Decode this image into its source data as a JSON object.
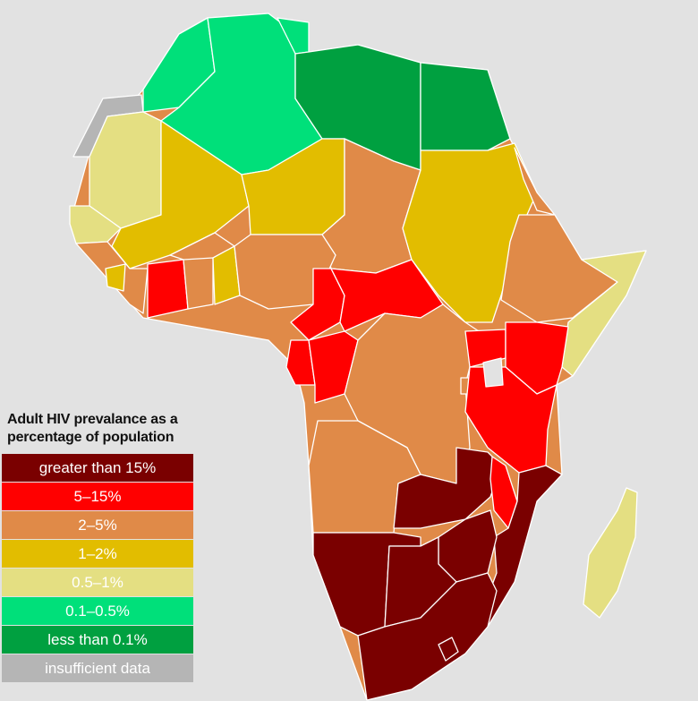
{
  "legend": {
    "title_line1": "Adult HIV prevalance as a",
    "title_line2": "percentage of population",
    "items": [
      {
        "label": "greater than 15%",
        "color": "#7a0000"
      },
      {
        "label": "5–15%",
        "color": "#ff0000"
      },
      {
        "label": "2–5%",
        "color": "#e08a48"
      },
      {
        "label": "1–2%",
        "color": "#e2bd00"
      },
      {
        "label": "0.5–1%",
        "color": "#e4df82"
      },
      {
        "label": "0.1–0.5%",
        "color": "#00e07a"
      },
      {
        "label": "less than 0.1%",
        "color": "#00a040"
      },
      {
        "label": "insufficient data",
        "color": "#b5b5b5"
      }
    ]
  },
  "map": {
    "regions": [
      {
        "name": "Morocco",
        "category": "0.1–0.5%"
      },
      {
        "name": "Algeria",
        "category": "0.1–0.5%"
      },
      {
        "name": "Tunisia",
        "category": "0.1–0.5%"
      },
      {
        "name": "Libya",
        "category": "less than 0.1%"
      },
      {
        "name": "Egypt",
        "category": "less than 0.1%"
      },
      {
        "name": "Western Sahara",
        "category": "insufficient data"
      },
      {
        "name": "Mauritania",
        "category": "0.5–1%"
      },
      {
        "name": "Senegal",
        "category": "0.5–1%"
      },
      {
        "name": "Mali",
        "category": "1–2%"
      },
      {
        "name": "Niger",
        "category": "1–2%"
      },
      {
        "name": "Chad",
        "category": "2–5%"
      },
      {
        "name": "Sudan",
        "category": "1–2%"
      },
      {
        "name": "Guinea",
        "category": "2–5%"
      },
      {
        "name": "Sierra Leone",
        "category": "2–5%"
      },
      {
        "name": "Liberia",
        "category": "1–2%"
      },
      {
        "name": "Cote d'Ivoire",
        "category": "5–15%"
      },
      {
        "name": "Ghana",
        "category": "2–5%"
      },
      {
        "name": "Burkina Faso",
        "category": "2–5%"
      },
      {
        "name": "Togo",
        "category": "2–5%"
      },
      {
        "name": "Benin",
        "category": "1–2%"
      },
      {
        "name": "Nigeria",
        "category": "2–5%"
      },
      {
        "name": "Cameroon",
        "category": "5–15%"
      },
      {
        "name": "Central African Republic",
        "category": "5–15%"
      },
      {
        "name": "Gabon",
        "category": "5–15%"
      },
      {
        "name": "Congo",
        "category": "5–15%"
      },
      {
        "name": "DR Congo",
        "category": "2–5%"
      },
      {
        "name": "Ethiopia",
        "category": "2–5%"
      },
      {
        "name": "Eritrea",
        "category": "2–5%"
      },
      {
        "name": "Somalia",
        "category": "0.5–1%"
      },
      {
        "name": "Uganda",
        "category": "5–15%"
      },
      {
        "name": "Kenya",
        "category": "5–15%"
      },
      {
        "name": "Tanzania",
        "category": "5–15%"
      },
      {
        "name": "Rwanda",
        "category": "2–5%"
      },
      {
        "name": "Angola",
        "category": "2–5%"
      },
      {
        "name": "Zambia",
        "category": "greater than 15%"
      },
      {
        "name": "Malawi",
        "category": "5–15%"
      },
      {
        "name": "Mozambique",
        "category": "greater than 15%"
      },
      {
        "name": "Zimbabwe",
        "category": "greater than 15%"
      },
      {
        "name": "Namibia",
        "category": "greater than 15%"
      },
      {
        "name": "Botswana",
        "category": "greater than 15%"
      },
      {
        "name": "South Africa",
        "category": "greater than 15%"
      },
      {
        "name": "Lesotho",
        "category": "greater than 15%"
      },
      {
        "name": "Madagascar",
        "category": "0.5–1%"
      }
    ]
  }
}
